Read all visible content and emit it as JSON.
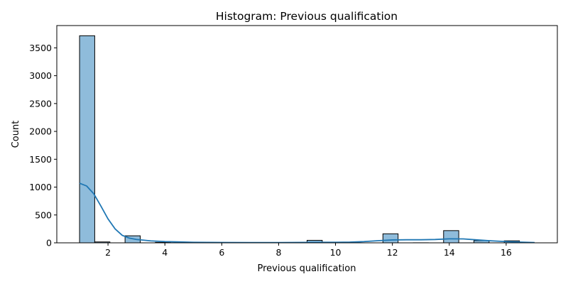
{
  "chart_data": {
    "type": "histogram",
    "title": "Histogram: Previous qualification",
    "xlabel": "Previous qualification",
    "ylabel": "Count",
    "xlim": [
      0.2,
      17.8
    ],
    "ylim": [
      0,
      3900
    ],
    "xticks": [
      2,
      4,
      6,
      8,
      10,
      12,
      14,
      16
    ],
    "yticks": [
      0,
      500,
      1000,
      1500,
      2000,
      2500,
      3000,
      3500
    ],
    "bins": [
      {
        "x0": 1.0,
        "x1": 1.5333,
        "count": 3717
      },
      {
        "x0": 1.5333,
        "x1": 2.0667,
        "count": 16
      },
      {
        "x0": 2.6,
        "x1": 3.1333,
        "count": 126
      },
      {
        "x0": 3.6667,
        "x1": 4.2,
        "count": 8
      },
      {
        "x0": 5.8,
        "x1": 6.3333,
        "count": 4
      },
      {
        "x0": 9.0,
        "x1": 9.5333,
        "count": 45
      },
      {
        "x0": 11.6667,
        "x1": 12.2,
        "count": 162
      },
      {
        "x0": 12.7333,
        "x1": 13.2667,
        "count": 1
      },
      {
        "x0": 13.8,
        "x1": 14.3333,
        "count": 219
      },
      {
        "x0": 14.8667,
        "x1": 15.4,
        "count": 40
      },
      {
        "x0": 15.9333,
        "x1": 16.4667,
        "count": 36
      }
    ],
    "kde": {
      "x": [
        1.0,
        1.25,
        1.5,
        1.75,
        2.0,
        2.25,
        2.5,
        2.75,
        3.0,
        3.5,
        4.0,
        5.0,
        6.0,
        7.0,
        8.0,
        9.0,
        9.5,
        10.0,
        10.5,
        11.0,
        11.5,
        12.0,
        12.5,
        13.0,
        13.5,
        14.0,
        14.5,
        15.0,
        15.5,
        16.0,
        16.5,
        17.0
      ],
      "y": [
        1070,
        1020,
        880,
        660,
        430,
        250,
        135,
        85,
        60,
        35,
        22,
        10,
        6,
        5,
        5,
        8,
        10,
        10,
        12,
        22,
        38,
        52,
        55,
        55,
        60,
        72,
        70,
        52,
        35,
        22,
        12,
        5
      ]
    },
    "colors": {
      "bar_fill": "#8fbcdb",
      "bar_edge": "#000000",
      "kde_line": "#1f77b4",
      "axis": "#000000"
    },
    "grid": false,
    "legend": "none"
  }
}
